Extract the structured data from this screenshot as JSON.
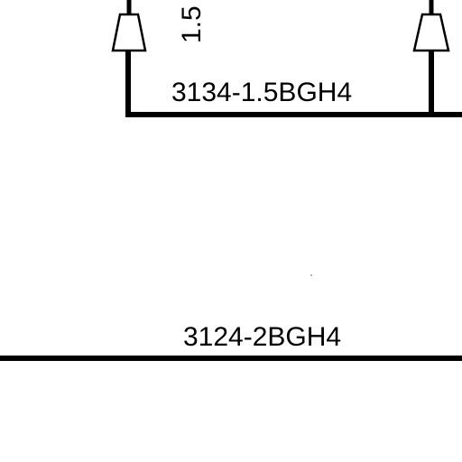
{
  "diagram": {
    "wires": {
      "upper_label": "3134-1.5BGH4",
      "lower_label": "3124-2BGH4",
      "vertical_partial_label": "1.5"
    }
  }
}
